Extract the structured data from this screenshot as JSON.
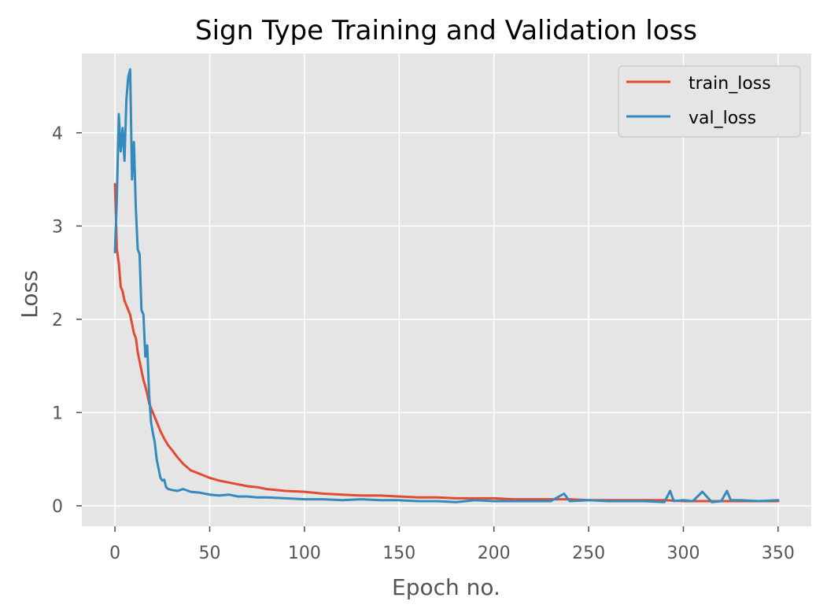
{
  "chart_data": {
    "type": "line",
    "title": "Sign Type Training and Validation loss",
    "xlabel": "Epoch no.",
    "ylabel": "Loss",
    "xlim": [
      -17.5,
      367.5
    ],
    "ylim": [
      -0.22,
      4.85
    ],
    "xticks": [
      0,
      50,
      100,
      150,
      200,
      250,
      300,
      350
    ],
    "yticks": [
      0,
      1,
      2,
      3,
      4
    ],
    "grid": true,
    "legend_position": "top-right",
    "style": "ggplot",
    "series": [
      {
        "name": "train_loss",
        "color": "#e24a33",
        "x": [
          0,
          1,
          2,
          3,
          4,
          5,
          6,
          7,
          8,
          9,
          10,
          11,
          12,
          13,
          14,
          15,
          16,
          17,
          18,
          19,
          20,
          22,
          24,
          26,
          28,
          30,
          33,
          36,
          40,
          45,
          50,
          55,
          60,
          65,
          70,
          75,
          80,
          90,
          100,
          110,
          120,
          130,
          140,
          150,
          160,
          170,
          180,
          190,
          200,
          210,
          220,
          230,
          240,
          250,
          260,
          270,
          280,
          290,
          300,
          310,
          320,
          330,
          340,
          350
        ],
        "y": [
          3.45,
          2.75,
          2.6,
          2.35,
          2.3,
          2.2,
          2.15,
          2.1,
          2.05,
          1.95,
          1.85,
          1.8,
          1.65,
          1.55,
          1.45,
          1.35,
          1.28,
          1.2,
          1.1,
          1.05,
          1.0,
          0.9,
          0.8,
          0.72,
          0.65,
          0.6,
          0.52,
          0.45,
          0.38,
          0.34,
          0.3,
          0.27,
          0.25,
          0.23,
          0.21,
          0.2,
          0.18,
          0.16,
          0.15,
          0.13,
          0.12,
          0.11,
          0.11,
          0.1,
          0.09,
          0.09,
          0.08,
          0.08,
          0.08,
          0.07,
          0.07,
          0.07,
          0.07,
          0.06,
          0.06,
          0.06,
          0.06,
          0.06,
          0.05,
          0.05,
          0.05,
          0.05,
          0.05,
          0.05
        ]
      },
      {
        "name": "val_loss",
        "color": "#348abd",
        "x": [
          0,
          1,
          2,
          3,
          4,
          5,
          6,
          7,
          8,
          9,
          10,
          11,
          12,
          13,
          14,
          15,
          16,
          17,
          18,
          19,
          20,
          21,
          22,
          23,
          24,
          25,
          26,
          27,
          28,
          30,
          33,
          36,
          40,
          45,
          50,
          55,
          60,
          65,
          70,
          75,
          80,
          90,
          100,
          110,
          120,
          130,
          140,
          150,
          160,
          170,
          180,
          190,
          200,
          210,
          220,
          230,
          237,
          240,
          250,
          260,
          270,
          280,
          290,
          293,
          295,
          300,
          305,
          310,
          315,
          320,
          323,
          325,
          330,
          340,
          350
        ],
        "y": [
          2.72,
          3.3,
          4.2,
          3.8,
          4.05,
          3.7,
          4.35,
          4.6,
          4.68,
          3.5,
          3.9,
          3.2,
          2.75,
          2.7,
          2.1,
          2.05,
          1.6,
          1.72,
          1.2,
          0.9,
          0.78,
          0.68,
          0.5,
          0.4,
          0.3,
          0.27,
          0.28,
          0.2,
          0.18,
          0.17,
          0.16,
          0.18,
          0.15,
          0.14,
          0.12,
          0.11,
          0.12,
          0.1,
          0.1,
          0.09,
          0.09,
          0.08,
          0.07,
          0.07,
          0.06,
          0.07,
          0.06,
          0.06,
          0.05,
          0.05,
          0.04,
          0.06,
          0.05,
          0.05,
          0.05,
          0.05,
          0.13,
          0.05,
          0.06,
          0.05,
          0.05,
          0.05,
          0.04,
          0.16,
          0.05,
          0.06,
          0.05,
          0.15,
          0.04,
          0.05,
          0.16,
          0.06,
          0.06,
          0.05,
          0.06
        ]
      }
    ]
  }
}
